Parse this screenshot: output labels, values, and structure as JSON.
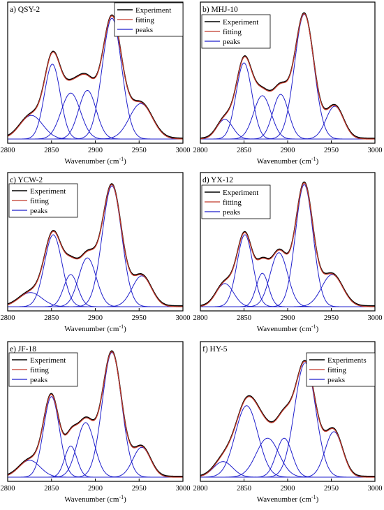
{
  "chart_data": [
    {
      "type": "line",
      "title": "a) QSY-2",
      "xlabel": "Wavenumber (cm-1)",
      "xlim": [
        2800,
        3000
      ],
      "xticks": [
        2800,
        2850,
        2900,
        2950,
        3000
      ],
      "legend": [
        "Experiment",
        "fitting",
        "peaks"
      ],
      "legend_position": "top-right",
      "colors": {
        "experiment": "#000000",
        "fitting": "#c0392b",
        "peaks": "#1f1fcc"
      },
      "peaks": [
        {
          "center": 2827,
          "height": 0.18,
          "width": 13
        },
        {
          "center": 2851,
          "height": 0.57,
          "width": 9
        },
        {
          "center": 2872,
          "height": 0.35,
          "width": 11
        },
        {
          "center": 2891,
          "height": 0.37,
          "width": 10
        },
        {
          "center": 2919,
          "height": 0.92,
          "width": 11
        },
        {
          "center": 2952,
          "height": 0.27,
          "width": 13
        }
      ]
    },
    {
      "type": "line",
      "title": "b) MHJ-10",
      "xlabel": "Wavenumber (cm-1)",
      "xlim": [
        2800,
        3000
      ],
      "xticks": [
        2800,
        2850,
        2900,
        2950,
        3000
      ],
      "legend": [
        "Experiment",
        "fitting",
        "peaks"
      ],
      "legend_position": "top-left",
      "colors": {
        "experiment": "#000000",
        "fitting": "#c0392b",
        "peaks": "#1f1fcc"
      },
      "peaks": [
        {
          "center": 2828,
          "height": 0.15,
          "width": 9
        },
        {
          "center": 2850,
          "height": 0.58,
          "width": 9
        },
        {
          "center": 2871,
          "height": 0.33,
          "width": 10
        },
        {
          "center": 2892,
          "height": 0.34,
          "width": 9
        },
        {
          "center": 2919,
          "height": 0.95,
          "width": 11
        },
        {
          "center": 2954,
          "height": 0.25,
          "width": 10
        }
      ]
    },
    {
      "type": "line",
      "title": "c) YCW-2",
      "xlabel": "Wavenumber (cm-1)",
      "xlim": [
        2800,
        3000
      ],
      "xticks": [
        2800,
        2850,
        2900,
        2950,
        3000
      ],
      "legend": [
        "Experiment",
        "fitting",
        "peaks"
      ],
      "legend_position": "top-left",
      "colors": {
        "experiment": "#000000",
        "fitting": "#c0392b",
        "peaks": "#1f1fcc"
      },
      "peaks": [
        {
          "center": 2826,
          "height": 0.11,
          "width": 13
        },
        {
          "center": 2852,
          "height": 0.56,
          "width": 10
        },
        {
          "center": 2872,
          "height": 0.25,
          "width": 8
        },
        {
          "center": 2891,
          "height": 0.38,
          "width": 10
        },
        {
          "center": 2919,
          "height": 0.94,
          "width": 11
        },
        {
          "center": 2953,
          "height": 0.24,
          "width": 11
        }
      ]
    },
    {
      "type": "line",
      "title": "d) YX-12",
      "xlabel": "Wavenumber (cm-1)",
      "xlim": [
        2800,
        3000
      ],
      "xticks": [
        2800,
        2850,
        2900,
        2950,
        3000
      ],
      "legend": [
        "Experiment",
        "fitting",
        "peaks"
      ],
      "legend_position": "top-left",
      "colors": {
        "experiment": "#000000",
        "fitting": "#c0392b",
        "peaks": "#1f1fcc"
      },
      "peaks": [
        {
          "center": 2828,
          "height": 0.18,
          "width": 10
        },
        {
          "center": 2851,
          "height": 0.56,
          "width": 9
        },
        {
          "center": 2871,
          "height": 0.26,
          "width": 7
        },
        {
          "center": 2890,
          "height": 0.42,
          "width": 10
        },
        {
          "center": 2919,
          "height": 0.95,
          "width": 10
        },
        {
          "center": 2951,
          "height": 0.25,
          "width": 12
        }
      ]
    },
    {
      "type": "line",
      "title": "e) JF-18",
      "xlabel": "Wavenumber (cm-1)",
      "xlim": [
        2800,
        3000
      ],
      "xticks": [
        2800,
        2850,
        2900,
        2950,
        3000
      ],
      "legend": [
        "Experiment",
        "fitting",
        "peaks"
      ],
      "legend_position": "top-left",
      "colors": {
        "experiment": "#000000",
        "fitting": "#c0392b",
        "peaks": "#1f1fcc"
      },
      "peaks": [
        {
          "center": 2825,
          "height": 0.13,
          "width": 12
        },
        {
          "center": 2850,
          "height": 0.62,
          "width": 9
        },
        {
          "center": 2872,
          "height": 0.24,
          "width": 7
        },
        {
          "center": 2889,
          "height": 0.42,
          "width": 10
        },
        {
          "center": 2919,
          "height": 0.96,
          "width": 11
        },
        {
          "center": 2953,
          "height": 0.23,
          "width": 10
        }
      ]
    },
    {
      "type": "line",
      "title": "f) HY-5",
      "xlabel": "Wavenumber (cm-1)",
      "xlim": [
        2800,
        3000
      ],
      "xticks": [
        2800,
        2850,
        2900,
        2950,
        3000
      ],
      "legend": [
        "Experiments",
        "fitting",
        "peaks"
      ],
      "legend_position": "top-right",
      "colors": {
        "experiment": "#000000",
        "fitting": "#c0392b",
        "peaks": "#1f1fcc"
      },
      "peaks": [
        {
          "center": 2826,
          "height": 0.12,
          "width": 11
        },
        {
          "center": 2853,
          "height": 0.55,
          "width": 13
        },
        {
          "center": 2877,
          "height": 0.3,
          "width": 13
        },
        {
          "center": 2896,
          "height": 0.3,
          "width": 9
        },
        {
          "center": 2920,
          "height": 0.88,
          "width": 12
        },
        {
          "center": 2953,
          "height": 0.35,
          "width": 10
        }
      ]
    }
  ],
  "labels": {
    "xlabel_main": "Wavenumber (cm",
    "xlabel_sup": "-1",
    "xlabel_close": ")"
  }
}
